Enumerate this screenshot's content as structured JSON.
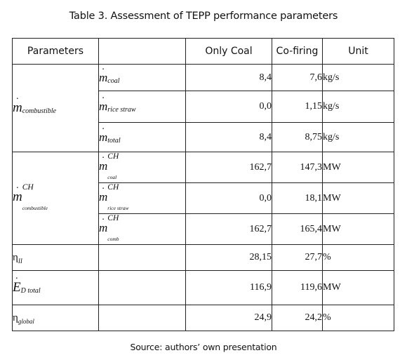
{
  "title": "Table 3. Assessment of TEPP performance parameters",
  "source": "Source: authors’ own presentation",
  "header": {
    "parameters": "Parameters",
    "only_coal": "Only Coal",
    "co_firing": "Co-firing",
    "unit": "Unit"
  },
  "symbols": {
    "m": "m",
    "eta": "η",
    "e": "E",
    "ch": "CH"
  },
  "groups": {
    "mass": "combustible",
    "exergy": "combustible"
  },
  "rows": [
    {
      "sub": "coal",
      "only_coal": "8,4",
      "co_firing": "7,6",
      "unit": "kg/s"
    },
    {
      "sub": "rice straw",
      "only_coal": "0,0",
      "co_firing": "1,15",
      "unit": "kg/s"
    },
    {
      "sub": "total",
      "only_coal": "8,4",
      "co_firing": "8,75",
      "unit": "kg/s"
    },
    {
      "sub": "coal",
      "only_coal": "162,7",
      "co_firing": "147,3",
      "unit": "MW"
    },
    {
      "sub": "rice straw",
      "only_coal": "0,0",
      "co_firing": "18,1",
      "unit": "MW"
    },
    {
      "sub": "comb",
      "only_coal": "162,7",
      "co_firing": "165,4",
      "unit": "MW"
    },
    {
      "sub": "II",
      "only_coal": "28,15",
      "co_firing": "27,7",
      "unit": "%"
    },
    {
      "sub": "D total",
      "only_coal": "116,9",
      "co_firing": "119,6",
      "unit": "MW"
    },
    {
      "sub": "global",
      "only_coal": "24,9",
      "co_firing": "24,2",
      "unit": "%"
    }
  ]
}
